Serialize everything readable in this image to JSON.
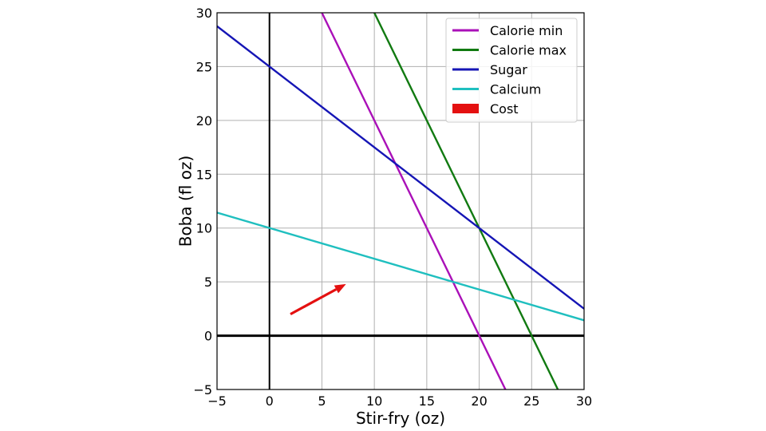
{
  "chart_data": {
    "type": "line",
    "title": "",
    "xlabel": "Stir-fry (oz)",
    "ylabel": "Boba (fl oz)",
    "xlim": [
      -5,
      30
    ],
    "ylim": [
      -5,
      30
    ],
    "xticks": [
      -5,
      0,
      5,
      10,
      15,
      20,
      25,
      30
    ],
    "yticks": [
      -5,
      0,
      5,
      10,
      15,
      20,
      25,
      30
    ],
    "grid": true,
    "legend_position": "top-right",
    "series": [
      {
        "name": "Calorie min",
        "color": "#aa10b8",
        "x": [
          5,
          22.5
        ],
        "y": [
          30,
          -5
        ]
      },
      {
        "name": "Calorie max",
        "color": "#117a11",
        "x": [
          10,
          27.5
        ],
        "y": [
          30,
          -5
        ]
      },
      {
        "name": "Sugar",
        "color": "#1515b5",
        "x": [
          -5,
          30
        ],
        "y": [
          28.75,
          2.5
        ]
      },
      {
        "name": "Calcium",
        "color": "#1fbfbf",
        "x": [
          -5,
          30
        ],
        "y": [
          11.43,
          1.43
        ]
      }
    ],
    "cost_arrow": {
      "name": "Cost",
      "color": "#e41010",
      "from": [
        2,
        2
      ],
      "to": [
        7.3,
        4.8
      ]
    }
  }
}
